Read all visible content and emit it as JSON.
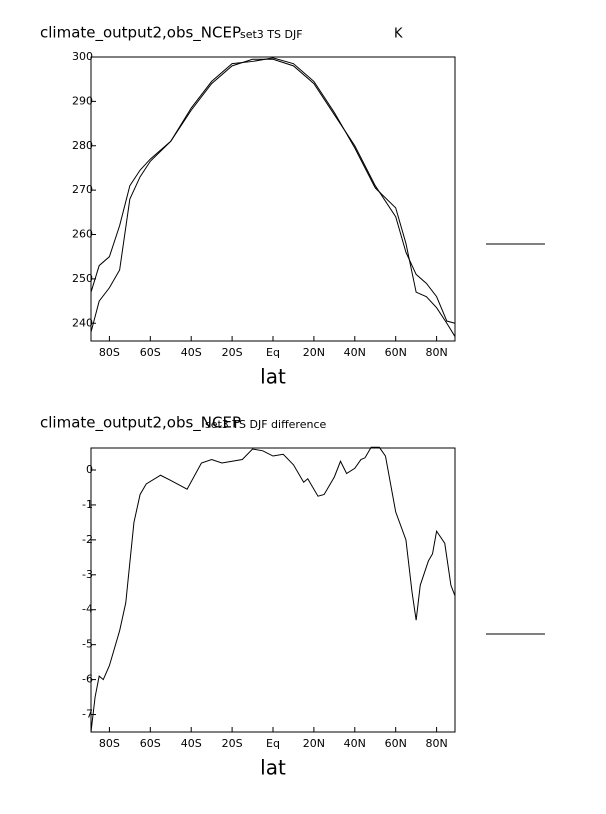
{
  "chart_data": [
    {
      "type": "line",
      "title": "climate_output2,obs_NCEP",
      "subtitle": "set3 TS DJF",
      "units": "K",
      "x_label": "lat",
      "x": [
        -89,
        -85,
        -80,
        -75,
        -70,
        -65,
        -60,
        -50,
        -40,
        -30,
        -20,
        -10,
        0,
        10,
        20,
        30,
        40,
        50,
        60,
        65,
        70,
        75,
        80,
        85,
        89
      ],
      "series": [
        {
          "color": "#000000",
          "values": [
            247,
            253,
            255,
            262,
            271,
            274.5,
            277,
            281,
            288,
            294,
            298,
            299.5,
            299.5,
            298,
            294,
            287,
            280,
            271,
            264,
            256,
            251,
            249,
            246,
            240.5,
            240
          ]
        },
        {
          "color": "#000000",
          "values": [
            238,
            245,
            248,
            252,
            268,
            273,
            276.5,
            281,
            288.5,
            294.5,
            298.5,
            299,
            299.8,
            298.5,
            294.5,
            287.5,
            279.5,
            270.5,
            266,
            258,
            247,
            246,
            243.5,
            240,
            237
          ]
        }
      ],
      "xlim": [
        -89,
        89
      ],
      "ylim": [
        236,
        300
      ],
      "xticks": [
        {
          "value": -80,
          "label": "80S"
        },
        {
          "value": -60,
          "label": "60S"
        },
        {
          "value": -40,
          "label": "40S"
        },
        {
          "value": -20,
          "label": "20S"
        },
        {
          "value": 0,
          "label": "Eq"
        },
        {
          "value": 20,
          "label": "20N"
        },
        {
          "value": 40,
          "label": "40N"
        },
        {
          "value": 60,
          "label": "60N"
        },
        {
          "value": 80,
          "label": "80N"
        }
      ],
      "yticks": [
        240,
        250,
        260,
        270,
        280,
        290,
        300
      ]
    },
    {
      "type": "line",
      "title": "climate_output2,obs_NCEP",
      "subtitle": "set3 TS DJF difference",
      "x_label": "lat",
      "x": [
        -89,
        -87,
        -85,
        -83,
        -80,
        -75,
        -72,
        -68,
        -65,
        -62,
        -55,
        -50,
        -42,
        -35,
        -30,
        -25,
        -20,
        -15,
        -10,
        -5,
        0,
        5,
        10,
        15,
        17,
        22,
        25,
        30,
        33,
        36,
        40,
        43,
        45,
        48,
        52,
        55,
        60,
        65,
        68,
        70,
        72,
        76,
        78,
        80,
        84,
        87,
        89
      ],
      "series": [
        {
          "color": "#000000",
          "values": [
            -7.5,
            -6.5,
            -5.9,
            -6,
            -5.6,
            -4.6,
            -3.8,
            -1.5,
            -0.7,
            -0.4,
            -0.15,
            -0.3,
            -0.55,
            0.2,
            0.3,
            0.2,
            0.25,
            0.3,
            0.6,
            0.55,
            0.4,
            0.45,
            0.15,
            -0.35,
            -0.25,
            -0.75,
            -0.7,
            -0.2,
            0.25,
            -0.1,
            0.05,
            0.3,
            0.35,
            0.65,
            0.65,
            0.4,
            -1.2,
            -2,
            -3.5,
            -4.3,
            -3.3,
            -2.6,
            -2.4,
            -1.75,
            -2.1,
            -3.3,
            -3.6
          ]
        }
      ],
      "xlim": [
        -89,
        89
      ],
      "ylim": [
        -7.5,
        0.63
      ],
      "xticks": [
        {
          "value": -80,
          "label": "80S"
        },
        {
          "value": -60,
          "label": "60S"
        },
        {
          "value": -40,
          "label": "40S"
        },
        {
          "value": -20,
          "label": "20S"
        },
        {
          "value": 0,
          "label": "Eq"
        },
        {
          "value": 20,
          "label": "20N"
        },
        {
          "value": 40,
          "label": "40N"
        },
        {
          "value": 60,
          "label": "60N"
        },
        {
          "value": 80,
          "label": "80N"
        }
      ],
      "yticks": [
        -7,
        -6,
        -5,
        -4,
        -3,
        -2,
        -1,
        0
      ]
    }
  ]
}
